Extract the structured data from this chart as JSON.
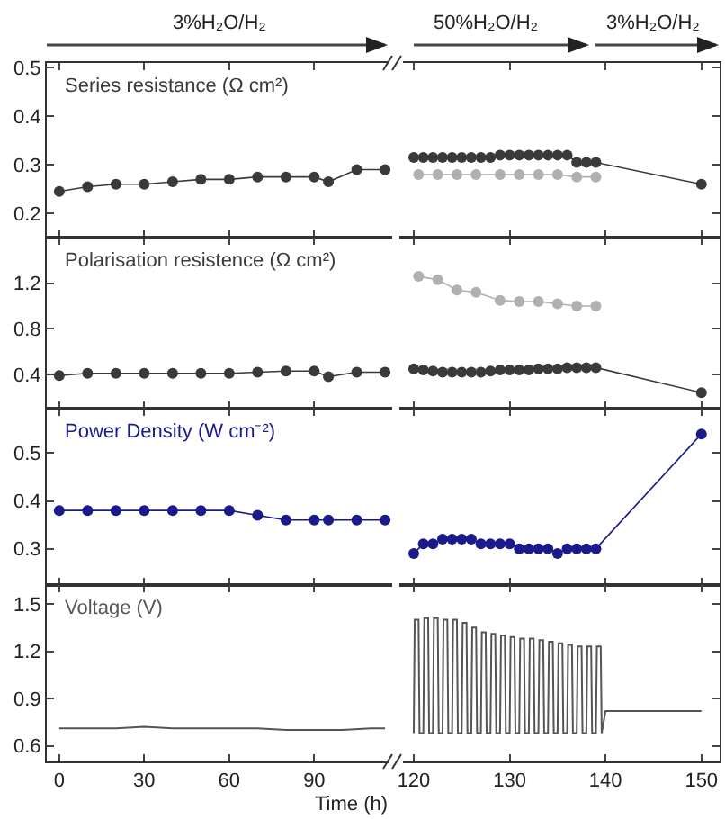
{
  "chart_data": [
    {
      "type": "line",
      "title": "Series resistance (Ω cm²)",
      "annotations": [
        "3%H₂O/H₂"
      ],
      "marker": "circle",
      "tick_labels": "y",
      "xlim": [
        -4.4,
        117.5
      ],
      "xticks": [
        {
          "value": 0,
          "label": null
        },
        {
          "value": 30,
          "label": null
        },
        {
          "value": 60,
          "label": null
        },
        {
          "value": 90,
          "label": null
        }
      ],
      "ylim": [
        0.15,
        0.51
      ],
      "yticks": [
        0.2,
        0.3,
        0.4,
        0.5
      ],
      "series": [
        {
          "color": "#3a3a3a",
          "x": [
            0,
            10,
            20,
            30,
            40,
            50,
            60,
            70,
            80,
            90,
            95,
            105,
            115
          ],
          "values": [
            0.245,
            0.255,
            0.26,
            0.26,
            0.265,
            0.27,
            0.27,
            0.275,
            0.275,
            0.275,
            0.265,
            0.29,
            0.29
          ]
        }
      ]
    },
    {
      "type": "line",
      "annotations": [
        "50%H₂O/H₂",
        "3%H₂O/H₂"
      ],
      "marker": "circle",
      "tick_labels": false,
      "xlim": [
        118.5,
        151.9
      ],
      "xticks": [
        {
          "value": 120,
          "label": null
        },
        {
          "value": 130,
          "label": null
        },
        {
          "value": 140,
          "label": null
        },
        {
          "value": 150,
          "label": null
        }
      ],
      "ylim": [
        0.15,
        0.51
      ],
      "yticks": [
        {
          "value": 0.2,
          "label": null
        },
        {
          "value": 0.3,
          "label": null
        },
        {
          "value": 0.4,
          "label": null
        },
        {
          "value": 0.5,
          "label": null
        }
      ],
      "series": [
        {
          "color": "#3a3a3a",
          "x": [
            120,
            121,
            122,
            123,
            124,
            125,
            126,
            127,
            128,
            129,
            130,
            131,
            132,
            133,
            134,
            135,
            136,
            137,
            138,
            139,
            150
          ],
          "values": [
            0.315,
            0.315,
            0.315,
            0.315,
            0.315,
            0.315,
            0.315,
            0.315,
            0.315,
            0.32,
            0.32,
            0.32,
            0.32,
            0.32,
            0.32,
            0.32,
            0.32,
            0.305,
            0.305,
            0.305,
            0.26
          ]
        },
        {
          "color": "#b0b0b0",
          "x": [
            120.5,
            122.5,
            124.5,
            126.5,
            129,
            131,
            133,
            135,
            137,
            139
          ],
          "values": [
            0.28,
            0.28,
            0.28,
            0.28,
            0.28,
            0.28,
            0.28,
            0.28,
            0.275,
            0.275
          ]
        }
      ]
    },
    {
      "type": "line",
      "title": "Polarisation resistence (Ω cm²)",
      "marker": "circle",
      "tick_labels": "y",
      "xlim": [
        -4.4,
        117.5
      ],
      "xticks": [
        {
          "value": 0,
          "label": null
        },
        {
          "value": 30,
          "label": null
        },
        {
          "value": 60,
          "label": null
        },
        {
          "value": 90,
          "label": null
        }
      ],
      "ylim": [
        0.1,
        1.6
      ],
      "yticks": [
        0.4,
        0.8,
        1.2
      ],
      "series": [
        {
          "color": "#3a3a3a",
          "x": [
            0,
            10,
            20,
            30,
            40,
            50,
            60,
            70,
            80,
            90,
            95,
            105,
            115
          ],
          "values": [
            0.39,
            0.41,
            0.41,
            0.41,
            0.41,
            0.41,
            0.41,
            0.42,
            0.43,
            0.43,
            0.38,
            0.42,
            0.42
          ]
        }
      ]
    },
    {
      "type": "line",
      "marker": "circle",
      "tick_labels": false,
      "xlim": [
        118.5,
        151.9
      ],
      "xticks": [
        {
          "value": 120,
          "label": null
        },
        {
          "value": 130,
          "label": null
        },
        {
          "value": 140,
          "label": null
        },
        {
          "value": 150,
          "label": null
        }
      ],
      "ylim": [
        0.1,
        1.6
      ],
      "yticks": [
        {
          "value": 0.4,
          "label": null
        },
        {
          "value": 0.8,
          "label": null
        },
        {
          "value": 1.2,
          "label": null
        }
      ],
      "series": [
        {
          "color": "#3a3a3a",
          "x": [
            120,
            121,
            122,
            123,
            124,
            125,
            126,
            127,
            128,
            129,
            130,
            131,
            132,
            133,
            134,
            135,
            136,
            137,
            138,
            139,
            150
          ],
          "values": [
            0.45,
            0.44,
            0.43,
            0.42,
            0.42,
            0.42,
            0.42,
            0.42,
            0.43,
            0.44,
            0.44,
            0.44,
            0.44,
            0.45,
            0.45,
            0.45,
            0.46,
            0.46,
            0.46,
            0.46,
            0.24
          ]
        },
        {
          "color": "#b0b0b0",
          "x": [
            120.5,
            122.5,
            124.5,
            126.5,
            129,
            131,
            133,
            135,
            137,
            139
          ],
          "values": [
            1.26,
            1.23,
            1.14,
            1.12,
            1.05,
            1.04,
            1.04,
            1.02,
            1.0,
            1.0
          ]
        }
      ]
    },
    {
      "type": "line",
      "title": "Power Density (W cm⁻²)",
      "marker": "circle",
      "tick_labels": "y",
      "xlim": [
        -4.4,
        117.5
      ],
      "xticks": [
        {
          "value": 0,
          "label": null
        },
        {
          "value": 30,
          "label": null
        },
        {
          "value": 60,
          "label": null
        },
        {
          "value": 90,
          "label": null
        }
      ],
      "ylim": [
        0.224,
        0.593
      ],
      "yticks": [
        0.3,
        0.4,
        0.5
      ],
      "series": [
        {
          "color": "#1a1a8c",
          "x": [
            0,
            10,
            20,
            30,
            40,
            50,
            60,
            70,
            80,
            90,
            95,
            105,
            115
          ],
          "values": [
            0.38,
            0.38,
            0.38,
            0.38,
            0.38,
            0.38,
            0.38,
            0.37,
            0.36,
            0.36,
            0.36,
            0.36,
            0.36
          ]
        }
      ]
    },
    {
      "type": "line",
      "marker": "circle",
      "tick_labels": false,
      "xlim": [
        118.5,
        151.9
      ],
      "xticks": [
        {
          "value": 120,
          "label": null
        },
        {
          "value": 130,
          "label": null
        },
        {
          "value": 140,
          "label": null
        },
        {
          "value": 150,
          "label": null
        }
      ],
      "ylim": [
        0.224,
        0.593
      ],
      "yticks": [
        {
          "value": 0.3,
          "label": null
        },
        {
          "value": 0.4,
          "label": null
        },
        {
          "value": 0.5,
          "label": null
        }
      ],
      "series": [
        {
          "color": "#1a1a8c",
          "x": [
            120,
            121,
            122,
            123,
            124,
            125,
            126,
            127,
            128,
            129,
            130,
            131,
            132,
            133,
            134,
            135,
            136,
            137,
            138,
            139,
            150
          ],
          "values": [
            0.29,
            0.31,
            0.31,
            0.32,
            0.32,
            0.32,
            0.32,
            0.31,
            0.31,
            0.31,
            0.31,
            0.3,
            0.3,
            0.3,
            0.3,
            0.29,
            0.3,
            0.3,
            0.3,
            0.3,
            0.54
          ]
        }
      ]
    },
    {
      "type": "line",
      "title": "Voltage (V)",
      "xlabel": "Time (h)",
      "marker": "none",
      "xlim": [
        -4.4,
        117.5
      ],
      "xticks": [
        0,
        30,
        60,
        90
      ],
      "ylim": [
        0.5,
        1.62
      ],
      "yticks": [
        0.6,
        0.9,
        1.2,
        1.5
      ],
      "series": [
        {
          "color": "#555555",
          "x": [
            0,
            10,
            20,
            30,
            40,
            50,
            60,
            70,
            80,
            90,
            100,
            110,
            115
          ],
          "values": [
            0.71,
            0.71,
            0.71,
            0.72,
            0.71,
            0.71,
            0.71,
            0.71,
            0.7,
            0.7,
            0.7,
            0.71,
            0.71
          ]
        }
      ]
    },
    {
      "type": "line",
      "marker": "none",
      "tick_labels": "x",
      "xlim": [
        118.5,
        151.9
      ],
      "xticks": [
        120,
        130,
        140,
        150
      ],
      "ylim": [
        0.5,
        1.62
      ],
      "yticks": [
        {
          "value": 0.6,
          "label": null
        },
        {
          "value": 0.9,
          "label": null
        },
        {
          "value": 1.2,
          "label": null
        },
        {
          "value": 1.5,
          "label": null
        }
      ],
      "series": [
        {
          "color": "#555555",
          "x": [
            120,
            120.1,
            120.5,
            120.6,
            121,
            121.1,
            121.5,
            121.6,
            122,
            122.1,
            122.5,
            122.6,
            123,
            123.1,
            123.5,
            123.6,
            124,
            124.1,
            124.5,
            124.6,
            125,
            125.1,
            125.5,
            125.6,
            126,
            126.1,
            126.5,
            126.6,
            127,
            127.1,
            127.5,
            127.6,
            128,
            128.1,
            128.5,
            128.6,
            129,
            129.1,
            129.5,
            129.6,
            130,
            130.1,
            130.5,
            130.6,
            131,
            131.1,
            131.5,
            131.6,
            132,
            132.1,
            132.5,
            132.6,
            133,
            133.1,
            133.5,
            133.6,
            134,
            134.1,
            134.5,
            134.6,
            135,
            135.1,
            135.5,
            135.6,
            136,
            136.1,
            136.5,
            136.6,
            137,
            137.1,
            137.5,
            137.6,
            138,
            138.1,
            138.5,
            138.6,
            139,
            139.1,
            139.5,
            139.6,
            140,
            150
          ],
          "values": [
            0.68,
            1.4,
            1.4,
            0.68,
            0.68,
            1.41,
            1.41,
            0.68,
            0.68,
            1.41,
            1.41,
            0.68,
            0.68,
            1.4,
            1.4,
            0.68,
            0.68,
            1.4,
            1.4,
            0.68,
            0.68,
            1.38,
            1.38,
            0.68,
            0.68,
            1.35,
            1.35,
            0.68,
            0.68,
            1.32,
            1.32,
            0.68,
            0.68,
            1.31,
            1.31,
            0.68,
            0.68,
            1.3,
            1.3,
            0.68,
            0.68,
            1.29,
            1.29,
            0.68,
            0.68,
            1.28,
            1.28,
            0.68,
            0.68,
            1.28,
            1.28,
            0.68,
            0.68,
            1.27,
            1.27,
            0.68,
            0.68,
            1.26,
            1.26,
            0.68,
            0.68,
            1.25,
            1.25,
            0.68,
            0.68,
            1.24,
            1.24,
            0.68,
            0.68,
            1.23,
            1.23,
            0.68,
            0.68,
            1.23,
            1.23,
            0.68,
            0.68,
            1.23,
            1.23,
            0.68,
            0.82,
            0.82
          ]
        }
      ]
    }
  ]
}
